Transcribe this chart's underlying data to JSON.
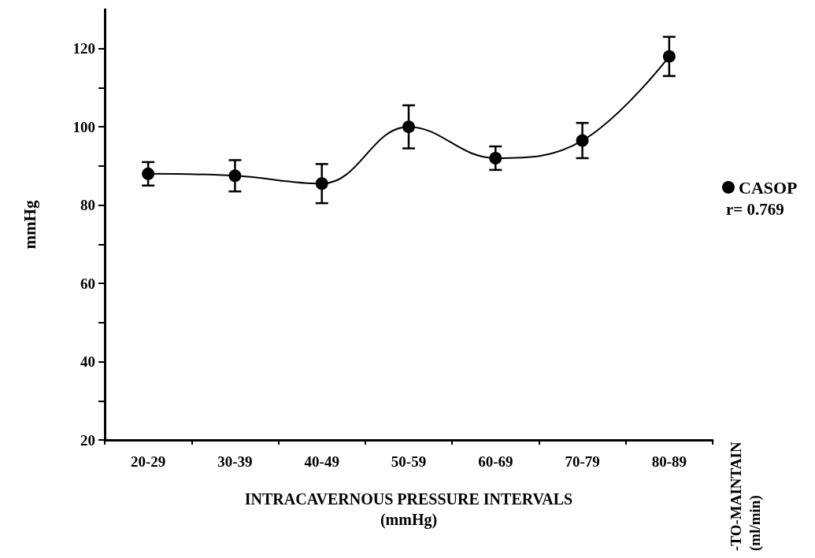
{
  "chart_data": {
    "type": "line",
    "categories": [
      "20-29",
      "30-39",
      "40-49",
      "50-59",
      "60-69",
      "70-79",
      "80-89"
    ],
    "series": [
      {
        "name": "CASOP",
        "color": "#000000",
        "values": [
          88,
          87.5,
          85.5,
          100,
          92,
          96.5,
          118
        ],
        "errors": [
          3,
          4,
          5,
          5.5,
          3,
          4.5,
          5
        ]
      }
    ],
    "xlabel": "INTRACAVERNOUS PRESSURE INTERVALS\n(mmHg)",
    "ylabel": "mmHg",
    "y2label": "-TO-MAINTAIN\n(ml/min)",
    "annotations": [
      "r= 0.769"
    ],
    "ylim": [
      20,
      130
    ],
    "yticks": [
      20,
      {
        "value": 30,
        "label": null
      },
      40,
      {
        "value": 50,
        "label": null
      },
      60,
      {
        "value": 70,
        "label": null
      },
      80,
      {
        "value": 90,
        "label": null
      },
      100,
      {
        "value": 110,
        "label": null
      },
      120
    ],
    "grid": false,
    "legend": "right",
    "marker": "circle",
    "line_style": "solid"
  }
}
